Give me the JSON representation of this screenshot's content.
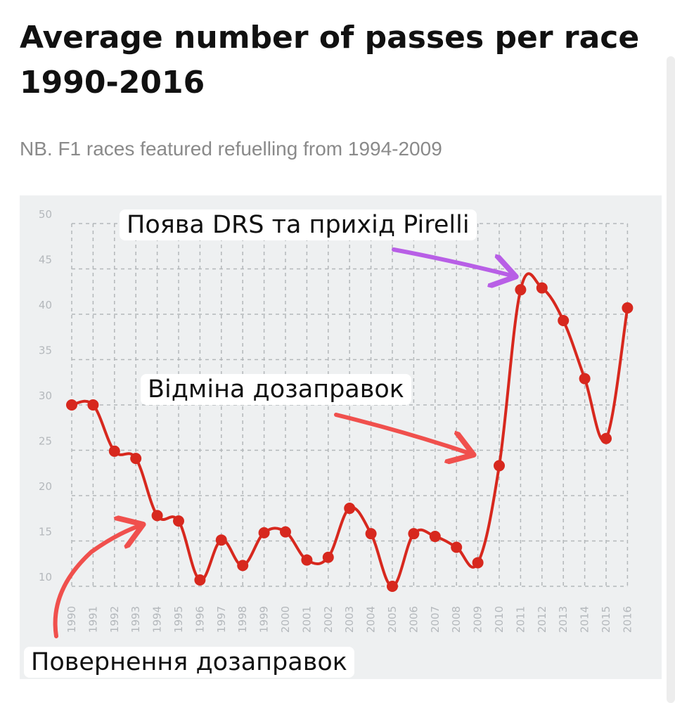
{
  "chart_data": {
    "type": "line",
    "title": "Average number of passes per race 1990-2016",
    "subtitle": "NB. F1 races featured refuelling from 1994-2009",
    "xlabel": "",
    "ylabel": "",
    "ylim": [
      10,
      50
    ],
    "yticks": [
      10,
      15,
      20,
      25,
      30,
      35,
      40,
      45,
      50
    ],
    "grid": true,
    "line_color": "#d7281e",
    "x": [
      "1990",
      "1991",
      "1992",
      "1993",
      "1994",
      "1995",
      "1996",
      "1997",
      "1998",
      "1999",
      "2000",
      "2001",
      "2002",
      "2003",
      "2004",
      "2005",
      "2006",
      "2007",
      "2008",
      "2009",
      "2010",
      "2011",
      "2012",
      "2013",
      "2014",
      "2015",
      "2016"
    ],
    "series": [
      {
        "values": [
          30,
          30,
          24.9,
          24.1,
          17.8,
          17.2,
          10.7,
          15.1,
          12.3,
          15.9,
          16.0,
          12.9,
          13.2,
          18.6,
          15.8,
          10.0,
          15.8,
          15.5,
          14.3,
          12.6,
          23.3,
          42.7,
          42.9,
          39.3,
          32.9,
          26.3,
          40.7
        ]
      }
    ],
    "annotations": [
      {
        "text": "Поява DRS та прихід Pirelli",
        "arrow_color": "#b85fe6",
        "points_to": "2011"
      },
      {
        "text": "Відміна дозаправок",
        "arrow_color": "#f0504d",
        "points_to": "2009"
      },
      {
        "text": "Повернення дозаправок",
        "arrow_color": "#f0504d",
        "points_to": "1994"
      }
    ]
  }
}
